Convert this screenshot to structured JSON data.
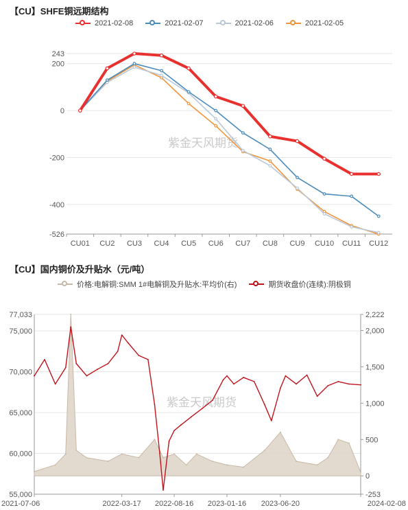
{
  "chart1": {
    "title": "【CU】SHFE铜远期结构",
    "watermark": "紫金天风期货",
    "legend": [
      {
        "label": "2021-02-08",
        "color": "#e8302e"
      },
      {
        "label": "2021-02-07",
        "color": "#4a8bbb"
      },
      {
        "label": "2021-02-06",
        "color": "#b9c8d8"
      },
      {
        "label": "2021-02-05",
        "color": "#f0953a"
      }
    ],
    "y_tick_labels": [
      "243",
      "200",
      "0",
      "-200",
      "-400",
      "-526"
    ]
  },
  "chart2": {
    "title": "【CU】国内铜价及升贴水（元/吨）",
    "watermark": "紫金天风期货",
    "legend": [
      {
        "label": "价格:电解铜:SMM 1#电解铜及升贴水:平均价(右)",
        "color": "#c8b8a6"
      },
      {
        "label": "期货收盘价(连续):阴极铜",
        "color": "#c0141c"
      }
    ],
    "left_tick_labels": [
      "77,033",
      "75,000",
      "70,000",
      "65,000",
      "60,000",
      "55,000"
    ],
    "right_tick_labels": [
      "2,222",
      "2,000",
      "1,500",
      "1,000",
      "500",
      "0",
      "-253"
    ],
    "x_tick_labels": [
      "2021-07-06",
      "2022-03-17",
      "2022-08-16",
      "2023-01-16",
      "2023-06-20",
      "2024-02-08"
    ]
  },
  "chart_data": [
    {
      "type": "line",
      "title": "【CU】SHFE铜远期结构",
      "categories": [
        "CU01",
        "CU2",
        "CU3",
        "CU4",
        "CU5",
        "CU6",
        "CU7",
        "CU8",
        "CU9",
        "CU10",
        "CU11",
        "CU12"
      ],
      "ylim": [
        -526,
        243
      ],
      "grid": true,
      "legend_position": "top-center",
      "series": [
        {
          "name": "2021-02-08",
          "color": "#e8302e",
          "values": [
            0,
            180,
            243,
            235,
            180,
            60,
            20,
            -110,
            -130,
            -205,
            -270,
            -270
          ]
        },
        {
          "name": "2021-02-07",
          "color": "#4a8bbb",
          "values": [
            0,
            130,
            200,
            170,
            80,
            0,
            -95,
            -165,
            -285,
            -355,
            -365,
            -450
          ]
        },
        {
          "name": "2021-02-06",
          "color": "#b9c8d8",
          "values": [
            0,
            120,
            185,
            150,
            75,
            -35,
            -170,
            -235,
            -330,
            -440,
            -495,
            -520
          ]
        },
        {
          "name": "2021-02-05",
          "color": "#f0953a",
          "values": [
            0,
            125,
            195,
            140,
            30,
            -65,
            -175,
            -215,
            -335,
            -430,
            -490,
            -526
          ]
        }
      ]
    },
    {
      "type": "line",
      "title": "【CU】国内铜价及升贴水（元/吨）",
      "x_range": [
        "2021-07-06",
        "2024-02-08"
      ],
      "left_ylim": [
        55000,
        77033
      ],
      "right_ylim": [
        -253,
        2222
      ],
      "grid": true,
      "legend_position": "top-center",
      "series": [
        {
          "name": "期货收盘价(连续):阴极铜",
          "axis": "left",
          "style": "line",
          "color": "#c0141c",
          "x": [
            "2021-07-06",
            "2021-08-05",
            "2021-09-05",
            "2021-10-05",
            "2021-10-20",
            "2021-11-05",
            "2021-12-05",
            "2022-01-05",
            "2022-02-05",
            "2022-03-05",
            "2022-03-17",
            "2022-04-05",
            "2022-05-05",
            "2022-06-01",
            "2022-06-20",
            "2022-07-05",
            "2022-07-15",
            "2022-08-01",
            "2022-08-16",
            "2022-09-05",
            "2022-10-05",
            "2022-11-05",
            "2022-12-05",
            "2023-01-05",
            "2023-01-16",
            "2023-02-05",
            "2023-03-05",
            "2023-04-05",
            "2023-05-05",
            "2023-05-25",
            "2023-06-20",
            "2023-07-05",
            "2023-08-05",
            "2023-09-05",
            "2023-10-05",
            "2023-11-05",
            "2023-12-05",
            "2024-01-05",
            "2024-02-08"
          ],
          "values": [
            69500,
            71500,
            68500,
            70500,
            75500,
            71000,
            69500,
            70300,
            71000,
            72500,
            74500,
            73500,
            72000,
            71500,
            66000,
            60000,
            55500,
            61500,
            62800,
            63500,
            64500,
            65500,
            66500,
            69000,
            69500,
            68500,
            69300,
            68800,
            66000,
            64000,
            68000,
            69500,
            68500,
            69600,
            67000,
            68300,
            68800,
            68500,
            68400
          ]
        },
        {
          "name": "价格:电解铜:SMM 1#电解铜及升贴水:平均价(右)",
          "axis": "right",
          "style": "area",
          "color": "#c8b8a6",
          "x": [
            "2021-07-06",
            "2021-09-05",
            "2021-10-05",
            "2021-10-20",
            "2021-11-05",
            "2021-12-05",
            "2022-02-05",
            "2022-03-17",
            "2022-05-05",
            "2022-06-20",
            "2022-07-15",
            "2022-08-16",
            "2022-09-20",
            "2022-10-20",
            "2022-12-05",
            "2023-01-16",
            "2023-03-05",
            "2023-05-05",
            "2023-06-20",
            "2023-08-05",
            "2023-10-05",
            "2023-11-05",
            "2023-12-05",
            "2024-01-05",
            "2024-02-08"
          ],
          "values": [
            60,
            150,
            300,
            2222,
            350,
            250,
            200,
            300,
            250,
            500,
            250,
            300,
            150,
            300,
            200,
            150,
            120,
            350,
            600,
            200,
            150,
            250,
            500,
            450,
            50
          ]
        }
      ]
    }
  ]
}
